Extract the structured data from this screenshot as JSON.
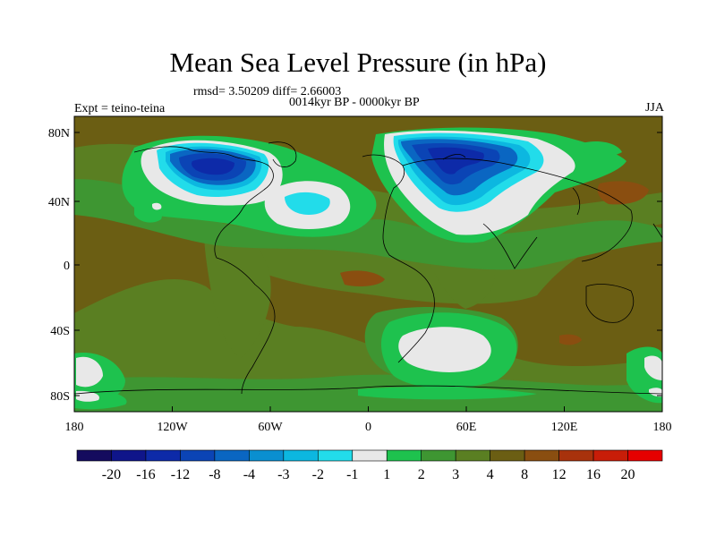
{
  "title": "Mean Sea Level Pressure (in hPa)",
  "stats_line": "rmsd= 3.50209 diff= 2.66003",
  "period_line": "0014kyr BP - 0000kyr BP",
  "experiment": "Expt = teino-teina",
  "season": "JJA",
  "lat_labels": [
    "80N",
    "40N",
    "0",
    "40S",
    "80S"
  ],
  "lon_labels": [
    "180",
    "120W",
    "60W",
    "0",
    "60E",
    "120E",
    "180"
  ],
  "colorbar": {
    "labels": [
      "-20",
      "-16",
      "-12",
      "-8",
      "-4",
      "-3",
      "-2",
      "-1",
      "1",
      "2",
      "3",
      "4",
      "8",
      "12",
      "16",
      "20"
    ],
    "colors": [
      "#140b5e",
      "#0f158a",
      "#0d2aa8",
      "#0b44b5",
      "#0a66c2",
      "#0a8fd0",
      "#0cb7e0",
      "#22dcea",
      "#e8e8e8",
      "#1ec24e",
      "#3e9632",
      "#5a7f22",
      "#6b5e13",
      "#8a4e10",
      "#a8320c",
      "#c81d08",
      "#e60000"
    ]
  },
  "map_colors": {
    "base": "#6b5e13",
    "green_dark": "#3e9632",
    "green_mid": "#5a7f22",
    "green_bright": "#1ec24e",
    "white": "#e8e8e8",
    "cyan": "#22dcea",
    "sky": "#0cb7e0",
    "blue_mid": "#0a66c2",
    "blue_dark": "#0b44b5",
    "navy": "#0d2aa8",
    "brown": "#8a4e10"
  }
}
